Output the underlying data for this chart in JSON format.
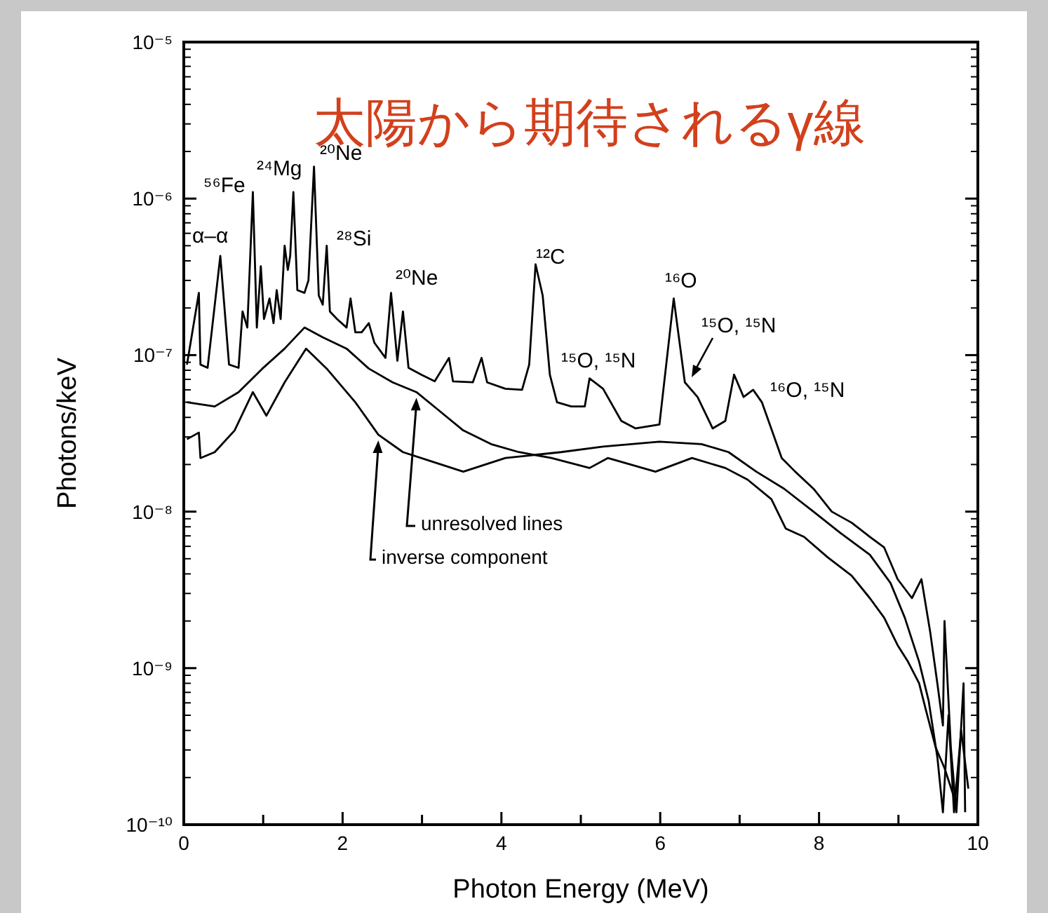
{
  "chart_data": {
    "type": "line",
    "title": "太陽から期待されるγ線",
    "xlabel": "Photon Energy (MeV)",
    "ylabel": "Photons/keV",
    "log": "y",
    "grid": false,
    "xlim": [
      0,
      10
    ],
    "ylim": [
      1e-10,
      1e-05
    ],
    "xticks": [
      0,
      {
        "value": 1,
        "label": null
      },
      2,
      {
        "value": 3,
        "label": null
      },
      4,
      {
        "value": 5,
        "label": null
      },
      6,
      {
        "value": 7,
        "label": null
      },
      8,
      {
        "value": 9,
        "label": null
      },
      10
    ],
    "yticks": [
      {
        "value": 1e-10,
        "label": "10⁻¹⁰"
      },
      {
        "value": 1e-09,
        "label": "10⁻⁹"
      },
      {
        "value": 1e-08,
        "label": "10⁻⁸"
      },
      {
        "value": 1e-07,
        "label": "10⁻⁷"
      },
      {
        "value": 1e-06,
        "label": "10⁻⁶"
      },
      {
        "value": 1e-05,
        "label": "10⁻⁵"
      }
    ],
    "series": [
      {
        "color": "#000000",
        "x": [
          0.04,
          0.19,
          0.21,
          0.3,
          0.46,
          0.57,
          0.69,
          0.74,
          0.8,
          0.87,
          0.92,
          0.97,
          1.01,
          1.08,
          1.13,
          1.17,
          1.22,
          1.27,
          1.31,
          1.34,
          1.38,
          1.43,
          1.52,
          1.57,
          1.64,
          1.7,
          1.75,
          1.8,
          1.84,
          1.93,
          2.05,
          2.1,
          2.16,
          2.24,
          2.33,
          2.4,
          2.54,
          2.61,
          2.69,
          2.76,
          2.83,
          2.99,
          3.16,
          3.34,
          3.39,
          3.64,
          3.75,
          3.82,
          4.05,
          4.26,
          4.35,
          4.43,
          4.52,
          4.61,
          4.7,
          4.88,
          5.05,
          5.11,
          5.28,
          5.51,
          5.69,
          5.99,
          6.17,
          6.31,
          6.47,
          6.66,
          6.82,
          6.93,
          7.05,
          7.17,
          7.28,
          7.53,
          7.7,
          7.93,
          8.16,
          8.41,
          8.64,
          8.82,
          8.99,
          9.17,
          9.29,
          9.4,
          9.49,
          9.56,
          9.58,
          9.66,
          9.73,
          9.82,
          9.84
        ],
        "values": [
          8.7e-08,
          2.5e-07,
          8.7e-08,
          8.3e-08,
          4.3e-07,
          8.7e-08,
          8.3e-08,
          1.9e-07,
          1.5e-07,
          1.1e-06,
          1.5e-07,
          3.7e-07,
          1.7e-07,
          2.3e-07,
          1.6e-07,
          2.6e-07,
          1.7e-07,
          5e-07,
          3.5e-07,
          4.3e-07,
          1.1e-06,
          2.6e-07,
          2.5e-07,
          3e-07,
          1.6e-06,
          2.4e-07,
          2.1e-07,
          5e-07,
          1.9e-07,
          1.7e-07,
          1.5e-07,
          2.3e-07,
          1.4e-07,
          1.4e-07,
          1.6e-07,
          1.2e-07,
          9.6e-08,
          2.5e-07,
          9.2e-08,
          1.9e-07,
          8.3e-08,
          7.5e-08,
          6.8e-08,
          9.6e-08,
          6.8e-08,
          6.7e-08,
          9.6e-08,
          6.7e-08,
          6.1e-08,
          6e-08,
          8.7e-08,
          3.8e-07,
          2.4e-07,
          7.5e-08,
          5e-08,
          4.7e-08,
          4.7e-08,
          7.1e-08,
          6.1e-08,
          3.8e-08,
          3.4e-08,
          3.6e-08,
          2.3e-07,
          6.7e-08,
          5.4e-08,
          3.4e-08,
          3.8e-08,
          7.5e-08,
          5.4e-08,
          6e-08,
          5e-08,
          2.2e-08,
          1.8e-08,
          1.4e-08,
          1e-08,
          8.5e-09,
          6.9e-09,
          5.9e-09,
          3.7e-09,
          2.8e-09,
          3.7e-09,
          1.7e-09,
          8e-10,
          4.3e-10,
          2e-09,
          3.1e-10,
          1.2e-10,
          8e-10,
          1.2e-10
        ]
      },
      {
        "color": "#000000",
        "x": [
          0.04,
          0.39,
          0.69,
          0.99,
          1.27,
          1.52,
          1.75,
          2.05,
          2.33,
          2.63,
          2.93,
          3.22,
          3.52,
          3.87,
          4.22,
          4.63,
          5.11,
          5.34,
          5.94,
          6.4,
          6.82,
          7.1,
          7.4,
          7.58,
          7.81,
          8.11,
          8.41,
          8.64,
          8.82,
          8.99,
          9.12,
          9.26,
          9.35,
          9.47,
          9.58,
          9.7
        ],
        "values": [
          5e-08,
          4.7e-08,
          5.8e-08,
          8.2e-08,
          1.1e-07,
          1.5e-07,
          1.3e-07,
          1.1e-07,
          8.2e-08,
          6.7e-08,
          5.8e-08,
          4.4e-08,
          3.3e-08,
          2.7e-08,
          2.4e-08,
          2.2e-08,
          1.9e-08,
          2.2e-08,
          1.8e-08,
          2.2e-08,
          1.9e-08,
          1.6e-08,
          1.2e-08,
          7.8e-09,
          6.9e-09,
          5.1e-09,
          3.9e-09,
          2.8e-09,
          2.1e-09,
          1.4e-09,
          1.1e-09,
          8e-10,
          5.3e-10,
          3.1e-10,
          2.3e-10,
          1.5e-10
        ]
      },
      {
        "color": "#000000",
        "x": [
          0.04,
          0.19,
          0.21,
          0.39,
          0.64,
          0.87,
          1.04,
          1.27,
          1.54,
          1.8,
          2.16,
          2.45,
          2.76,
          3.11,
          3.52,
          4.05,
          4.75,
          5.28,
          5.99,
          6.52,
          6.86,
          7.21,
          7.56,
          7.93,
          8.27,
          8.64,
          8.9,
          9.08,
          9.26,
          9.38,
          9.49,
          9.56,
          9.63,
          9.7,
          9.79,
          9.88
        ],
        "values": [
          2.9e-08,
          3.2e-08,
          2.2e-08,
          2.4e-08,
          3.3e-08,
          5.8e-08,
          4.1e-08,
          6.7e-08,
          1.1e-07,
          8.2e-08,
          5e-08,
          3.1e-08,
          2.4e-08,
          2.1e-08,
          1.8e-08,
          2.2e-08,
          2.4e-08,
          2.6e-08,
          2.8e-08,
          2.7e-08,
          2.4e-08,
          1.8e-08,
          1.4e-08,
          1e-08,
          7.3e-09,
          5.3e-09,
          3.5e-09,
          2.1e-09,
          1.1e-09,
          6.2e-10,
          2.7e-10,
          1.2e-10,
          5e-10,
          1.2e-10,
          4e-10,
          1.7e-10
        ]
      }
    ],
    "annotations": [
      "⁵⁶Fe",
      "²⁴Mg",
      "²⁰Ne",
      "α–α",
      "²⁸Si",
      "²⁰Ne",
      "¹²C",
      "¹⁶O",
      "¹⁵O, ¹⁵N",
      "¹⁵O, ¹⁵N",
      "¹⁶O, ¹⁵N",
      {
        "text": "unresolved lines",
        "x": 2.93,
        "y": 5.8e-08
      },
      {
        "text": "inverse component",
        "x": 2.45,
        "y": 3.1e-08
      }
    ]
  }
}
